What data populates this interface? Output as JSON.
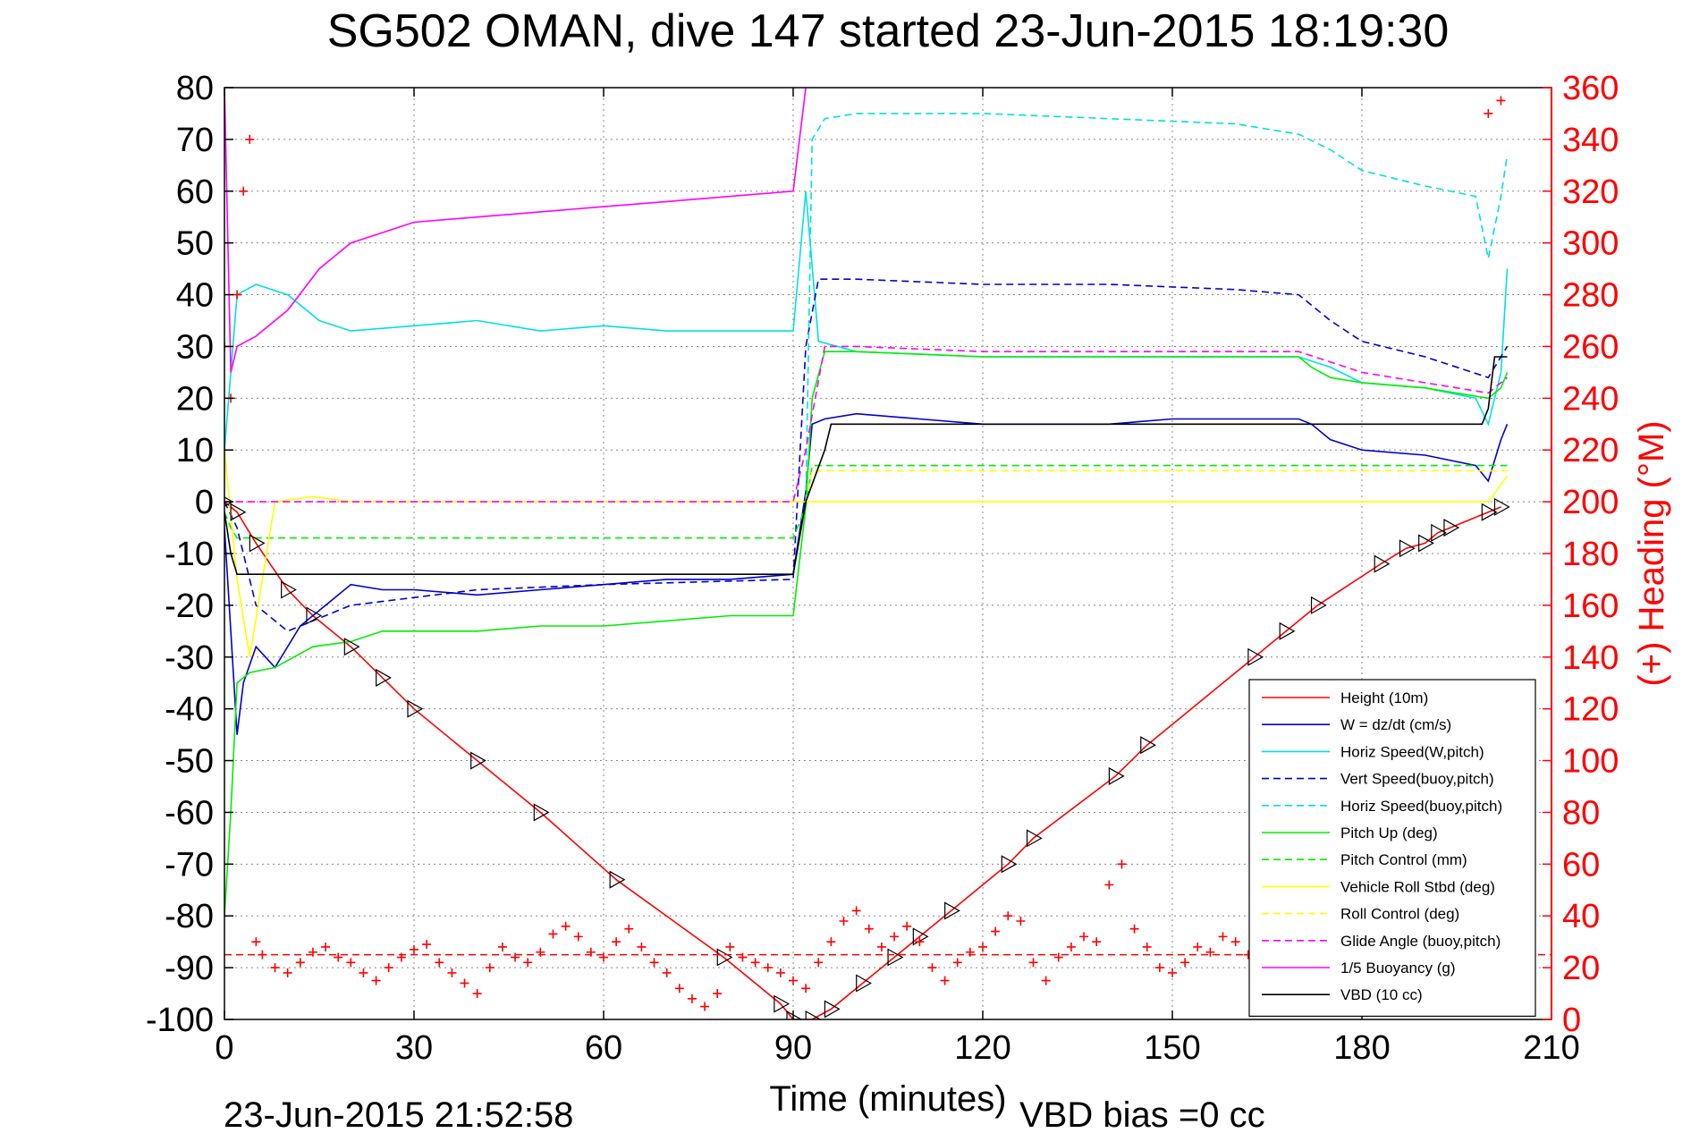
{
  "chart_data": {
    "type": "line",
    "title": "SG502 OMAN, dive 147 started 23-Jun-2015 18:19:30",
    "xlabel": "Time (minutes)",
    "ylabel": "",
    "ylabel_right": "(+) Heading (°M)",
    "xlim": [
      0,
      210
    ],
    "ylim": [
      -100,
      80
    ],
    "ylim_right": [
      0,
      360
    ],
    "xticks": [
      0,
      30,
      60,
      90,
      120,
      150,
      180,
      210
    ],
    "yticks": [
      80,
      70,
      60,
      50,
      40,
      30,
      20,
      10,
      0,
      -10,
      -20,
      -30,
      -40,
      -50,
      -60,
      -70,
      -80,
      -90,
      -100
    ],
    "yticks_right": [
      360,
      340,
      320,
      300,
      280,
      260,
      240,
      220,
      200,
      180,
      160,
      140,
      120,
      100,
      80,
      60,
      40,
      20,
      0
    ],
    "grid": true,
    "legend_position": "bottom-right",
    "footer_left": "23-Jun-2015 21:52:58",
    "footer_right": "VBD bias =0 cc",
    "colors": {
      "axes": "#000000",
      "right_axis": "#ff0000",
      "grid": "#888888"
    },
    "series": [
      {
        "name": "Height (10m)",
        "color": "#ff0000",
        "dash": "solid",
        "x": [
          0,
          2,
          5,
          10,
          14,
          20,
          25,
          30,
          40,
          50,
          62,
          79,
          88,
          90,
          93,
          96,
          101,
          106,
          110,
          115,
          124,
          128,
          141,
          146,
          163,
          168,
          173,
          183,
          187,
          190,
          192,
          194,
          200,
          202
        ],
        "y": [
          0,
          -2,
          -8,
          -17,
          -22,
          -28,
          -34,
          -40,
          -50,
          -60,
          -73,
          -88,
          -97,
          -100,
          -100,
          -98,
          -93,
          -88,
          -84,
          -79,
          -70,
          -65,
          -53,
          -47,
          -30,
          -25,
          -20,
          -12,
          -9,
          -8,
          -6,
          -5,
          -2,
          -1
        ]
      },
      {
        "name": "W = dz/dt (cm/s)",
        "color": "#0000cc",
        "dash": "solid",
        "x": [
          0,
          1,
          2,
          3,
          5,
          8,
          12,
          16,
          20,
          25,
          30,
          40,
          50,
          60,
          70,
          80,
          90,
          92,
          93,
          95,
          100,
          110,
          120,
          130,
          140,
          150,
          160,
          170,
          172,
          175,
          180,
          190,
          198,
          200,
          202,
          203
        ],
        "y": [
          -5,
          -25,
          -45,
          -35,
          -28,
          -32,
          -24,
          -20,
          -16,
          -17,
          -17,
          -18,
          -17,
          -16,
          -15,
          -15,
          -14,
          2,
          15,
          16,
          17,
          16,
          15,
          15,
          15,
          16,
          16,
          16,
          15,
          12,
          10,
          9,
          7,
          4,
          12,
          15
        ]
      },
      {
        "name": "Horiz Speed(W,pitch)",
        "color": "#00e0e0",
        "dash": "solid",
        "x": [
          0,
          1,
          2,
          5,
          10,
          15,
          20,
          30,
          40,
          50,
          60,
          70,
          80,
          90,
          92,
          94,
          100,
          120,
          140,
          160,
          170,
          175,
          180,
          190,
          198,
          200,
          202,
          203
        ],
        "y": [
          10,
          25,
          40,
          42,
          40,
          35,
          33,
          34,
          35,
          33,
          34,
          33,
          33,
          33,
          60,
          31,
          29,
          28,
          28,
          28,
          28,
          26,
          23,
          22,
          20,
          15,
          25,
          45
        ]
      },
      {
        "name": "Vert Speed(buoy,pitch)",
        "color": "#0000cc",
        "dash": "dashed",
        "x": [
          0,
          2,
          5,
          10,
          20,
          40,
          60,
          90,
          92,
          94,
          100,
          120,
          140,
          160,
          170,
          175,
          180,
          190,
          200,
          203
        ],
        "y": [
          0,
          -5,
          -20,
          -25,
          -20,
          -17,
          -16,
          -15,
          30,
          43,
          43,
          42,
          42,
          41,
          40,
          35,
          31,
          28,
          24,
          30
        ]
      },
      {
        "name": "Horiz Speed(buoy,pitch)",
        "color": "#00e0e0",
        "dash": "dashed",
        "x": [
          92,
          93,
          95,
          100,
          120,
          140,
          160,
          170,
          175,
          180,
          190,
          198,
          200,
          202,
          203
        ],
        "y": [
          0,
          70,
          74,
          75,
          75,
          74,
          73,
          71,
          68,
          64,
          61,
          59,
          47,
          59,
          67
        ]
      },
      {
        "name": "Pitch Up (deg)",
        "color": "#00ee00",
        "dash": "solid",
        "x": [
          0,
          1,
          2,
          4,
          8,
          14,
          20,
          25,
          30,
          40,
          50,
          60,
          70,
          80,
          90,
          92,
          93,
          95,
          100,
          120,
          140,
          160,
          170,
          172,
          175,
          180,
          190,
          200,
          202,
          203
        ],
        "y": [
          -80,
          -60,
          -35,
          -33,
          -32,
          -28,
          -27,
          -25,
          -25,
          -25,
          -24,
          -24,
          -23,
          -22,
          -22,
          -1,
          20,
          29,
          29,
          28,
          28,
          28,
          28,
          26,
          24,
          23,
          22,
          20,
          22,
          25
        ]
      },
      {
        "name": "Pitch Control (mm)",
        "color": "#00ee00",
        "dash": "dashed",
        "x": [
          0,
          1,
          2,
          90,
          92,
          93,
          203
        ],
        "y": [
          -2,
          -5,
          -7,
          -7,
          -1,
          7,
          7
        ]
      },
      {
        "name": "Vehicle Roll Stbd (deg)",
        "color": "#ffff00",
        "dash": "solid",
        "x": [
          0,
          2,
          4,
          8,
          14,
          20,
          30,
          40,
          50,
          60,
          70,
          80,
          90,
          92,
          94,
          100,
          120,
          140,
          160,
          180,
          190,
          200,
          203
        ],
        "y": [
          10,
          -15,
          -30,
          0,
          1,
          0,
          0,
          0,
          0,
          0,
          0,
          0,
          0,
          0,
          0,
          0,
          0,
          0,
          0,
          0,
          0,
          0,
          5
        ]
      },
      {
        "name": "Roll Control (deg)",
        "color": "#ffff00",
        "dash": "dashed",
        "x": [
          0,
          2,
          90,
          92,
          93,
          203
        ],
        "y": [
          0,
          0,
          0,
          0,
          6,
          6
        ]
      },
      {
        "name": "Glide Angle (buoy,pitch)",
        "color": "#ff00ff",
        "dash": "dashed",
        "x": [
          0,
          90,
          92,
          95,
          100,
          120,
          140,
          160,
          170,
          175,
          180,
          190,
          200,
          203
        ],
        "y": [
          0,
          0,
          10,
          30,
          30,
          29,
          29,
          29,
          29,
          27,
          25,
          23,
          21,
          24
        ]
      },
      {
        "name": "1/5 Buoyancy (g)",
        "color": "#ff00ff",
        "dash": "solid",
        "x": [
          0,
          1,
          2,
          5,
          10,
          15,
          20,
          25,
          30,
          40,
          50,
          60,
          70,
          80,
          90,
          92
        ],
        "y": [
          80,
          25,
          30,
          32,
          37,
          45,
          50,
          52,
          54,
          55,
          56,
          57,
          58,
          59,
          60,
          80
        ]
      },
      {
        "name": "VBD (10 cc)",
        "color": "#000000",
        "dash": "solid",
        "x": [
          0,
          1,
          2,
          90,
          92,
          95,
          96,
          198,
          199,
          200,
          201,
          203
        ],
        "y": [
          -2,
          -10,
          -14,
          -14,
          0,
          10,
          15,
          15,
          15,
          18,
          28,
          28
        ]
      }
    ],
    "heading": {
      "name": "(+) Heading (°M)",
      "color": "#ff0000",
      "marker": "+",
      "mean": 25,
      "x": [
        0,
        1,
        2,
        3,
        4,
        5,
        6,
        8,
        10,
        12,
        14,
        16,
        18,
        20,
        22,
        24,
        26,
        28,
        30,
        32,
        34,
        36,
        38,
        40,
        42,
        44,
        46,
        48,
        50,
        52,
        54,
        56,
        58,
        60,
        62,
        64,
        66,
        68,
        70,
        72,
        74,
        76,
        78,
        80,
        82,
        84,
        86,
        88,
        90,
        92,
        94,
        96,
        98,
        100,
        102,
        104,
        106,
        108,
        110,
        112,
        114,
        116,
        118,
        120,
        122,
        124,
        126,
        128,
        130,
        132,
        134,
        136,
        138,
        140,
        142,
        144,
        146,
        148,
        150,
        152,
        154,
        156,
        158,
        160,
        162,
        164,
        166,
        168,
        170,
        172,
        174,
        176,
        178,
        180,
        182,
        184,
        186,
        188,
        190,
        192,
        194,
        196,
        198,
        200,
        202
      ],
      "y": [
        260,
        240,
        280,
        320,
        340,
        30,
        25,
        20,
        18,
        22,
        26,
        28,
        24,
        22,
        18,
        15,
        20,
        24,
        27,
        29,
        22,
        18,
        14,
        10,
        20,
        28,
        24,
        22,
        26,
        33,
        36,
        32,
        26,
        24,
        30,
        35,
        28,
        22,
        18,
        12,
        8,
        5,
        10,
        28,
        24,
        22,
        20,
        18,
        15,
        12,
        22,
        30,
        38,
        42,
        35,
        28,
        32,
        36,
        30,
        20,
        15,
        22,
        26,
        28,
        34,
        40,
        38,
        22,
        15,
        24,
        28,
        32,
        30,
        52,
        60,
        35,
        28,
        20,
        18,
        22,
        28,
        26,
        32,
        30,
        25,
        18,
        16,
        20,
        28,
        32,
        30,
        20,
        18,
        14,
        22,
        35,
        30,
        28,
        26,
        32,
        30,
        28,
        25,
        350,
        355
      ]
    }
  }
}
